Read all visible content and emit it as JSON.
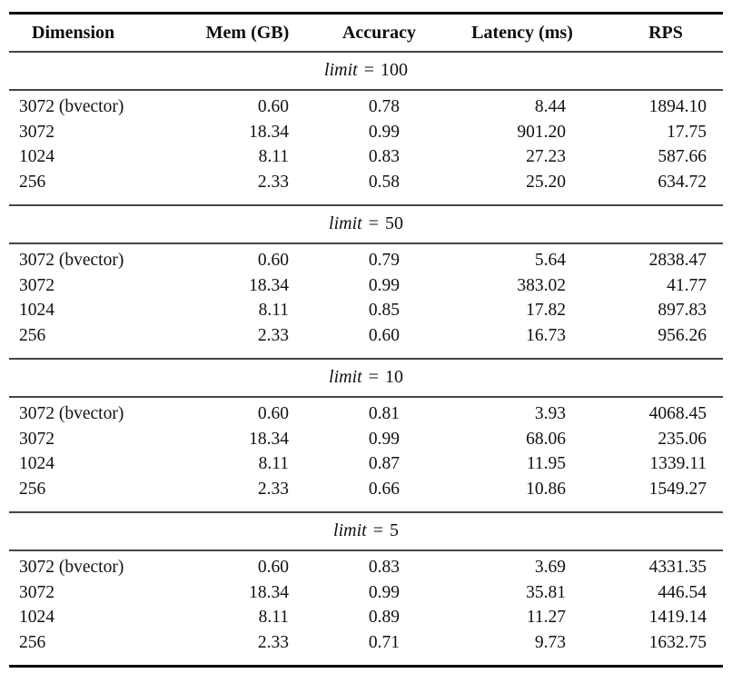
{
  "colors": {
    "background": "#ffffff",
    "text": "#111111",
    "rule_thick": "#000000",
    "rule_thin": "#444444"
  },
  "table": {
    "headers": {
      "dimension": "Dimension",
      "mem": "Mem (GB)",
      "accuracy": "Accuracy",
      "latency": "Latency (ms)",
      "rps": "RPS"
    },
    "sections": [
      {
        "label": {
          "var": "limit",
          "eq": "=",
          "value": "100"
        },
        "rows": [
          {
            "dimension": "3072 (bvector)",
            "mem_gb": "0.60",
            "accuracy": "0.78",
            "latency_ms": "8.44",
            "rps": "1894.10"
          },
          {
            "dimension": "3072",
            "mem_gb": "18.34",
            "accuracy": "0.99",
            "latency_ms": "901.20",
            "rps": "17.75"
          },
          {
            "dimension": "1024",
            "mem_gb": "8.11",
            "accuracy": "0.83",
            "latency_ms": "27.23",
            "rps": "587.66"
          },
          {
            "dimension": "256",
            "mem_gb": "2.33",
            "accuracy": "0.58",
            "latency_ms": "25.20",
            "rps": "634.72"
          }
        ]
      },
      {
        "label": {
          "var": "limit",
          "eq": "=",
          "value": "50"
        },
        "rows": [
          {
            "dimension": "3072 (bvector)",
            "mem_gb": "0.60",
            "accuracy": "0.79",
            "latency_ms": "5.64",
            "rps": "2838.47"
          },
          {
            "dimension": "3072",
            "mem_gb": "18.34",
            "accuracy": "0.99",
            "latency_ms": "383.02",
            "rps": "41.77"
          },
          {
            "dimension": "1024",
            "mem_gb": "8.11",
            "accuracy": "0.85",
            "latency_ms": "17.82",
            "rps": "897.83"
          },
          {
            "dimension": "256",
            "mem_gb": "2.33",
            "accuracy": "0.60",
            "latency_ms": "16.73",
            "rps": "956.26"
          }
        ]
      },
      {
        "label": {
          "var": "limit",
          "eq": "=",
          "value": "10"
        },
        "rows": [
          {
            "dimension": "3072 (bvector)",
            "mem_gb": "0.60",
            "accuracy": "0.81",
            "latency_ms": "3.93",
            "rps": "4068.45"
          },
          {
            "dimension": "3072",
            "mem_gb": "18.34",
            "accuracy": "0.99",
            "latency_ms": "68.06",
            "rps": "235.06"
          },
          {
            "dimension": "1024",
            "mem_gb": "8.11",
            "accuracy": "0.87",
            "latency_ms": "11.95",
            "rps": "1339.11"
          },
          {
            "dimension": "256",
            "mem_gb": "2.33",
            "accuracy": "0.66",
            "latency_ms": "10.86",
            "rps": "1549.27"
          }
        ]
      },
      {
        "label": {
          "var": "limit",
          "eq": "=",
          "value": "5"
        },
        "rows": [
          {
            "dimension": "3072 (bvector)",
            "mem_gb": "0.60",
            "accuracy": "0.83",
            "latency_ms": "3.69",
            "rps": "4331.35"
          },
          {
            "dimension": "3072",
            "mem_gb": "18.34",
            "accuracy": "0.99",
            "latency_ms": "35.81",
            "rps": "446.54"
          },
          {
            "dimension": "1024",
            "mem_gb": "8.11",
            "accuracy": "0.89",
            "latency_ms": "11.27",
            "rps": "1419.14"
          },
          {
            "dimension": "256",
            "mem_gb": "2.33",
            "accuracy": "0.71",
            "latency_ms": "9.73",
            "rps": "1632.75"
          }
        ]
      }
    ]
  }
}
